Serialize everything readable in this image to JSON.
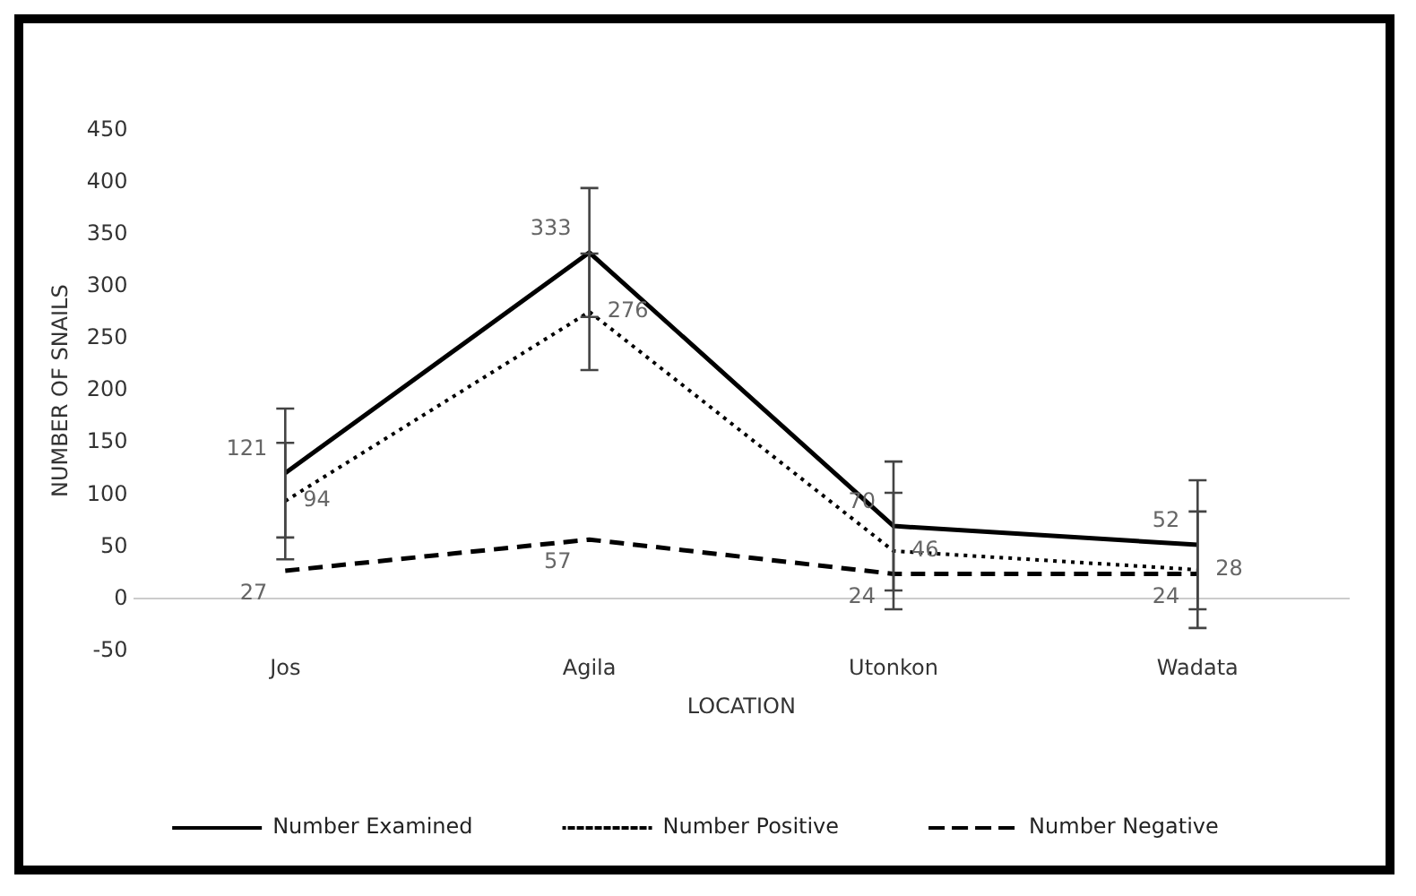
{
  "chart_data": {
    "type": "line",
    "xlabel": "LOCATION",
    "ylabel": "NUMBER OF SNAILS",
    "categories": [
      "Jos",
      "Agila",
      "Utonkon",
      "Wadata"
    ],
    "series": [
      {
        "name": "Number Examined",
        "color": "#000000",
        "line_style": "solid",
        "values": [
          121,
          333,
          70,
          52
        ],
        "errors": [
          62,
          62,
          62,
          62
        ]
      },
      {
        "name": "Number Positive",
        "color": "#000000",
        "line_style": "dotted",
        "values": [
          94,
          276,
          46,
          28
        ],
        "errors": [
          56,
          56,
          56,
          56
        ]
      },
      {
        "name": "Number Negative",
        "color": "#000000",
        "line_style": "dashed",
        "values": [
          27,
          57,
          24,
          24
        ]
      }
    ],
    "ylim": [
      -50,
      450
    ],
    "yticks": [
      -50,
      0,
      50,
      100,
      150,
      200,
      250,
      300,
      350,
      400,
      450
    ],
    "data_labels": true,
    "legend": "bottom",
    "marker": "none"
  }
}
